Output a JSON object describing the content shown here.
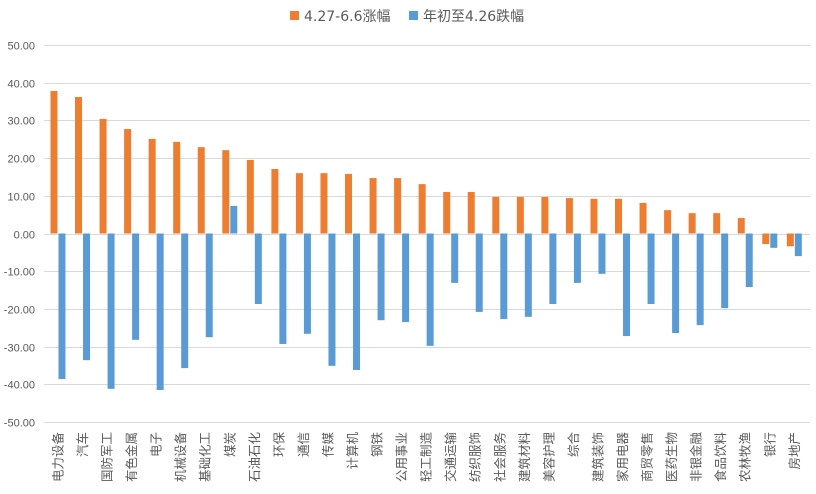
{
  "chart_data": {
    "type": "bar",
    "categories": [
      "电力设备",
      "汽车",
      "国防军工",
      "有色金属",
      "电子",
      "机械设备",
      "基础化工",
      "煤炭",
      "石油石化",
      "环保",
      "通信",
      "传媒",
      "计算机",
      "钢铁",
      "公用事业",
      "轻工制造",
      "交通运输",
      "纺织服饰",
      "社会服务",
      "建筑材料",
      "美容护理",
      "综合",
      "建筑装饰",
      "家用电器",
      "商贸零售",
      "医药生物",
      "非银金融",
      "食品饮料",
      "农林牧渔",
      "银行",
      "房地产"
    ],
    "series": [
      {
        "name": "4.27-6.6涨幅",
        "color": "#ED7D31",
        "values": [
          37.8,
          36.2,
          30.4,
          27.7,
          25.1,
          24.3,
          22.9,
          22.1,
          19.5,
          17.1,
          16.0,
          16.0,
          15.8,
          14.7,
          14.7,
          13.1,
          11.0,
          11.0,
          9.7,
          9.7,
          9.7,
          9.4,
          9.2,
          9.2,
          8.1,
          6.2,
          5.4,
          5.4,
          4.1,
          -2.8,
          -3.4
        ]
      },
      {
        "name": "年初至4.26跌幅",
        "color": "#5B9BD5",
        "values": [
          -38.6,
          -33.6,
          -41.2,
          -28.2,
          -41.5,
          -35.7,
          -27.5,
          7.3,
          -18.7,
          -29.3,
          -26.6,
          -35.1,
          -36.2,
          -23.0,
          -23.5,
          -29.8,
          -13.1,
          -20.8,
          -22.7,
          -22.1,
          -18.7,
          -13.1,
          -10.7,
          -27.2,
          -18.7,
          -26.4,
          -24.3,
          -19.8,
          -14.2,
          -3.8,
          -6.0
        ]
      }
    ],
    "ylim": [
      -50,
      50
    ],
    "y_ticks": [
      50,
      40,
      30,
      20,
      10,
      0,
      -10,
      -20,
      -30,
      -40,
      -50
    ],
    "y_tick_labels": [
      "50.00",
      "40.00",
      "30.00",
      "20.00",
      "10.00",
      "0.00",
      "-10.00",
      "-20.00",
      "-30.00",
      "-40.00",
      "-50.00"
    ],
    "grid": true,
    "legend_position": "top",
    "grid_color": "#D9D9D9",
    "text_color": "#595959"
  }
}
